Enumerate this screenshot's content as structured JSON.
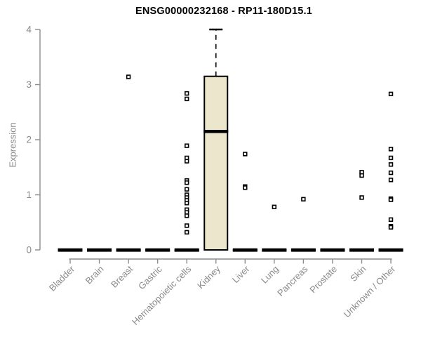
{
  "chart_data": {
    "type": "boxplot",
    "title": "ENSG00000232168 - RP11-180D15.1",
    "ylabel": "Expression",
    "xlabel": "",
    "ylim": [
      0,
      4
    ],
    "yticks": [
      0,
      1,
      2,
      3,
      4
    ],
    "grid": false,
    "legend": "none",
    "categories": [
      "Bladder",
      "Brain",
      "Breast",
      "Gastric",
      "Hematopoietic cells",
      "Kidney",
      "Liver",
      "Lung",
      "Pancreas",
      "Prostate",
      "Skin",
      "Unknown / Other"
    ],
    "boxes": [
      {
        "category": "Bladder",
        "q1": 0,
        "median": 0,
        "q3": 0,
        "whisker_low": 0,
        "whisker_high": 0,
        "outliers": []
      },
      {
        "category": "Brain",
        "q1": 0,
        "median": 0,
        "q3": 0,
        "whisker_low": 0,
        "whisker_high": 0,
        "outliers": []
      },
      {
        "category": "Breast",
        "q1": 0,
        "median": 0,
        "q3": 0,
        "whisker_low": 0,
        "whisker_high": 0,
        "outliers": [
          3.14
        ]
      },
      {
        "category": "Gastric",
        "q1": 0,
        "median": 0,
        "q3": 0,
        "whisker_low": 0,
        "whisker_high": 0,
        "outliers": []
      },
      {
        "category": "Hematopoietic cells",
        "q1": 0,
        "median": 0,
        "q3": 0,
        "whisker_low": 0,
        "whisker_high": 0,
        "outliers": [
          2.84,
          2.74,
          1.89,
          1.67,
          1.61,
          1.26,
          1.22,
          1.1,
          1.0,
          0.95,
          0.9,
          0.85,
          0.73,
          0.68,
          0.62,
          0.44,
          0.32
        ]
      },
      {
        "category": "Kidney",
        "q1": 0,
        "median": 2.15,
        "q3": 3.15,
        "whisker_low": 0,
        "whisker_high": 4.0,
        "outliers": []
      },
      {
        "category": "Liver",
        "q1": 0,
        "median": 0,
        "q3": 0,
        "whisker_low": 0,
        "whisker_high": 0,
        "outliers": [
          1.74,
          1.15,
          1.13
        ]
      },
      {
        "category": "Lung",
        "q1": 0,
        "median": 0,
        "q3": 0,
        "whisker_low": 0,
        "whisker_high": 0,
        "outliers": [
          0.78
        ]
      },
      {
        "category": "Pancreas",
        "q1": 0,
        "median": 0,
        "q3": 0,
        "whisker_low": 0,
        "whisker_high": 0,
        "outliers": [
          0.92
        ]
      },
      {
        "category": "Prostate",
        "q1": 0,
        "median": 0,
        "q3": 0,
        "whisker_low": 0,
        "whisker_high": 0,
        "outliers": []
      },
      {
        "category": "Skin",
        "q1": 0,
        "median": 0,
        "q3": 0,
        "whisker_low": 0,
        "whisker_high": 0,
        "outliers": [
          1.41,
          1.35,
          0.95
        ]
      },
      {
        "category": "Unknown / Other",
        "q1": 0,
        "median": 0,
        "q3": 0,
        "whisker_low": 0,
        "whisker_high": 0,
        "outliers": [
          2.83,
          1.83,
          1.67,
          1.55,
          1.4,
          1.27,
          0.93,
          0.91,
          0.55,
          0.43,
          0.41
        ]
      }
    ],
    "colors": {
      "box_fill": "#ECE7CC",
      "box_stroke": "#000000",
      "median": "#000000",
      "whisker": "#000000",
      "outlier_stroke": "#000000",
      "outlier_fill": "#ffffff",
      "axis_line": "#8c8c8c",
      "axis_text": "#8a8a8a",
      "title": "#000000"
    }
  }
}
